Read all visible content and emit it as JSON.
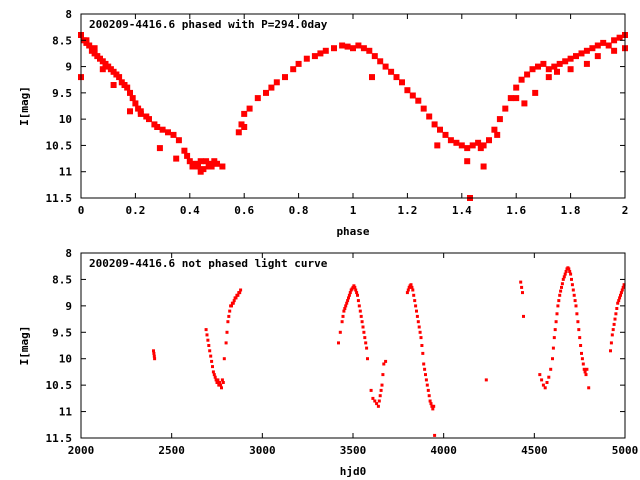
{
  "chart_data": [
    {
      "type": "scatter",
      "title": "200209-4416.6 phased with P=294.0day",
      "xlabel": "phase",
      "ylabel": "I[mag]",
      "xlim": [
        0,
        2
      ],
      "ylim": [
        8,
        11.5
      ],
      "y_inverted": true,
      "x_ticks": [
        "0",
        "0.2",
        "0.4",
        "0.6",
        "0.8",
        "1",
        "1.2",
        "1.4",
        "1.6",
        "1.8",
        "2"
      ],
      "y_ticks": [
        "8",
        "8.5",
        "9",
        "9.5",
        "10",
        "10.5",
        "11",
        "11.5"
      ],
      "grid": false,
      "marker_color": "#ff0000",
      "marker": "filled-square",
      "series": [
        {
          "x": [
            0.0,
            0.01,
            0.02,
            0.03,
            0.04,
            0.05,
            0.06,
            0.07,
            0.08,
            0.09,
            0.1,
            0.11,
            0.12,
            0.13,
            0.14,
            0.15,
            0.16,
            0.17,
            0.18,
            0.19,
            0.2,
            0.21,
            0.22,
            0.24,
            0.25,
            0.27,
            0.28,
            0.3,
            0.32,
            0.34,
            0.36,
            0.38,
            0.39,
            0.4,
            0.42,
            0.43,
            0.44,
            0.45,
            0.46,
            0.47,
            0.48,
            0.49,
            0.5,
            0.52,
            0.58,
            0.59,
            0.6,
            0.62,
            0.65,
            0.68,
            0.7,
            0.72,
            0.75,
            0.78,
            0.8,
            0.83,
            0.86,
            0.88,
            0.9,
            0.93,
            0.96,
            0.98,
            1.0,
            1.02,
            1.04,
            1.06,
            1.08,
            1.1,
            1.12,
            1.14,
            1.16,
            1.18,
            1.2,
            1.22,
            1.24,
            1.26,
            1.28,
            1.3,
            1.32,
            1.34,
            1.36,
            1.38,
            1.4,
            1.42,
            1.44,
            1.46,
            1.47,
            1.48,
            1.5,
            1.52,
            1.54,
            1.56,
            1.58,
            1.6,
            1.62,
            1.64,
            1.66,
            1.68,
            1.7,
            1.72,
            1.74,
            1.76,
            1.78,
            1.8,
            1.82,
            1.84,
            1.86,
            1.88,
            1.9,
            1.92,
            1.94,
            1.96,
            1.98,
            2.0,
            0.0,
            0.02,
            0.05,
            0.08,
            0.12,
            0.18,
            0.22,
            0.29,
            0.35,
            0.41,
            0.44,
            0.47,
            0.6,
            1.07,
            1.31,
            1.42,
            1.43,
            1.48,
            1.53,
            1.6,
            1.63,
            1.67,
            1.72,
            1.75,
            1.8,
            1.86,
            1.9,
            1.96,
            2.0
          ],
          "y": [
            8.4,
            8.5,
            8.55,
            8.6,
            8.7,
            8.75,
            8.8,
            8.85,
            8.9,
            8.95,
            9.0,
            9.05,
            9.1,
            9.15,
            9.2,
            9.3,
            9.35,
            9.4,
            9.5,
            9.6,
            9.7,
            9.8,
            9.85,
            9.95,
            10.0,
            10.1,
            10.15,
            10.2,
            10.25,
            10.3,
            10.4,
            10.6,
            10.7,
            10.8,
            10.85,
            10.9,
            10.8,
            10.95,
            10.8,
            10.85,
            10.9,
            10.8,
            10.85,
            10.9,
            10.25,
            10.1,
            9.9,
            9.8,
            9.6,
            9.5,
            9.4,
            9.3,
            9.2,
            9.05,
            8.95,
            8.85,
            8.8,
            8.75,
            8.7,
            8.65,
            8.6,
            8.62,
            8.65,
            8.6,
            8.65,
            8.7,
            8.8,
            8.9,
            9.0,
            9.1,
            9.2,
            9.3,
            9.45,
            9.55,
            9.65,
            9.8,
            9.95,
            10.1,
            10.2,
            10.3,
            10.4,
            10.45,
            10.5,
            10.55,
            10.5,
            10.45,
            10.55,
            10.5,
            10.4,
            10.2,
            10.0,
            9.8,
            9.6,
            9.4,
            9.25,
            9.15,
            9.05,
            9.0,
            8.95,
            9.05,
            9.0,
            8.95,
            8.9,
            8.85,
            8.8,
            8.75,
            8.7,
            8.65,
            8.6,
            8.55,
            8.6,
            8.5,
            8.45,
            8.4,
            9.2,
            8.5,
            8.65,
            9.05,
            9.35,
            9.85,
            9.9,
            10.55,
            10.75,
            10.9,
            11.0,
            10.9,
            10.15,
            9.2,
            10.5,
            10.8,
            11.5,
            10.9,
            10.3,
            9.6,
            9.7,
            9.5,
            9.2,
            9.1,
            9.05,
            8.95,
            8.8,
            8.7,
            8.65
          ]
        }
      ]
    },
    {
      "type": "scatter",
      "title": "200209-4416.6 not phased light curve",
      "xlabel": "hjd0",
      "ylabel": "I[mag]",
      "xlim": [
        2000,
        5000
      ],
      "ylim": [
        8,
        11.5
      ],
      "y_inverted": true,
      "x_ticks": [
        "2000",
        "2500",
        "3000",
        "3500",
        "4000",
        "4500",
        "5000"
      ],
      "y_ticks": [
        "8",
        "8.5",
        "9",
        "9.5",
        "10",
        "10.5",
        "11",
        "11.5"
      ],
      "grid": false,
      "marker_color": "#ff0000",
      "marker": "small-dot",
      "series": [
        {
          "x": [
            2400,
            2402,
            2404,
            2406,
            2690,
            2695,
            2700,
            2705,
            2710,
            2715,
            2720,
            2725,
            2730,
            2735,
            2740,
            2745,
            2750,
            2755,
            2760,
            2765,
            2770,
            2775,
            2780,
            2785,
            2790,
            2800,
            2805,
            2810,
            2815,
            2820,
            2825,
            2830,
            2835,
            2840,
            2845,
            2850,
            2855,
            2860,
            2865,
            2870,
            2875,
            2880,
            3420,
            3430,
            3440,
            3445,
            3450,
            3455,
            3460,
            3465,
            3470,
            3475,
            3480,
            3485,
            3490,
            3495,
            3500,
            3505,
            3510,
            3515,
            3520,
            3525,
            3530,
            3535,
            3540,
            3545,
            3550,
            3555,
            3560,
            3565,
            3570,
            3575,
            3580,
            3600,
            3610,
            3620,
            3630,
            3640,
            3645,
            3650,
            3655,
            3660,
            3665,
            3670,
            3680,
            3800,
            3805,
            3810,
            3815,
            3820,
            3825,
            3830,
            3835,
            3840,
            3845,
            3850,
            3855,
            3860,
            3865,
            3870,
            3875,
            3880,
            3885,
            3890,
            3895,
            3900,
            3905,
            3910,
            3915,
            3920,
            3925,
            3930,
            3935,
            3940,
            3945,
            3950,
            4235,
            4425,
            4430,
            4435,
            4440,
            4530,
            4540,
            4550,
            4560,
            4570,
            4580,
            4590,
            4600,
            4605,
            4610,
            4615,
            4620,
            4625,
            4630,
            4635,
            4640,
            4645,
            4650,
            4655,
            4660,
            4665,
            4670,
            4675,
            4680,
            4685,
            4690,
            4695,
            4700,
            4705,
            4710,
            4715,
            4720,
            4725,
            4730,
            4735,
            4740,
            4745,
            4750,
            4755,
            4760,
            4765,
            4770,
            4775,
            4780,
            4785,
            4790,
            4800,
            4920,
            4925,
            4930,
            4935,
            4940,
            4945,
            4950,
            4955,
            4960,
            4965,
            4970,
            4975,
            4980,
            4985,
            4990,
            4995
          ],
          "y": [
            9.85,
            9.9,
            9.95,
            10.0,
            9.45,
            9.55,
            9.65,
            9.75,
            9.85,
            9.95,
            10.05,
            10.15,
            10.25,
            10.3,
            10.35,
            10.4,
            10.45,
            10.4,
            10.5,
            10.45,
            10.5,
            10.55,
            10.4,
            10.45,
            10.0,
            9.7,
            9.5,
            9.3,
            9.2,
            9.1,
            9.0,
            9.0,
            8.95,
            8.95,
            8.9,
            8.85,
            8.85,
            8.8,
            8.8,
            8.75,
            8.75,
            8.7,
            9.7,
            9.5,
            9.3,
            9.2,
            9.1,
            9.05,
            9.0,
            8.95,
            8.9,
            8.85,
            8.8,
            8.75,
            8.7,
            8.68,
            8.65,
            8.62,
            8.65,
            8.7,
            8.75,
            8.8,
            8.9,
            9.0,
            9.1,
            9.2,
            9.3,
            9.4,
            9.5,
            9.6,
            9.7,
            9.8,
            10.0,
            10.6,
            10.75,
            10.8,
            10.85,
            10.9,
            10.8,
            10.7,
            10.6,
            10.5,
            10.3,
            10.1,
            10.05,
            8.75,
            8.7,
            8.65,
            8.62,
            8.6,
            8.65,
            8.7,
            8.8,
            8.9,
            9.0,
            9.1,
            9.2,
            9.3,
            9.4,
            9.5,
            9.6,
            9.75,
            9.9,
            10.1,
            10.2,
            10.3,
            10.4,
            10.5,
            10.6,
            10.7,
            10.8,
            10.85,
            10.9,
            10.95,
            10.9,
            11.45,
            10.4,
            8.55,
            8.65,
            8.75,
            9.2,
            10.3,
            10.4,
            10.5,
            10.55,
            10.45,
            10.35,
            10.2,
            10.0,
            9.8,
            9.6,
            9.45,
            9.3,
            9.15,
            9.0,
            8.9,
            8.8,
            8.72,
            8.65,
            8.58,
            8.5,
            8.45,
            8.4,
            8.35,
            8.3,
            8.28,
            8.3,
            8.35,
            8.4,
            8.5,
            8.6,
            8.7,
            8.8,
            8.9,
            9.0,
            9.15,
            9.3,
            9.45,
            9.6,
            9.75,
            9.9,
            10.0,
            10.1,
            10.2,
            10.25,
            10.3,
            10.2,
            10.55,
            9.85,
            9.7,
            9.55,
            9.45,
            9.35,
            9.25,
            9.15,
            9.05,
            8.95,
            8.9,
            8.85,
            8.8,
            8.75,
            8.7,
            8.65,
            8.6
          ]
        }
      ]
    }
  ]
}
